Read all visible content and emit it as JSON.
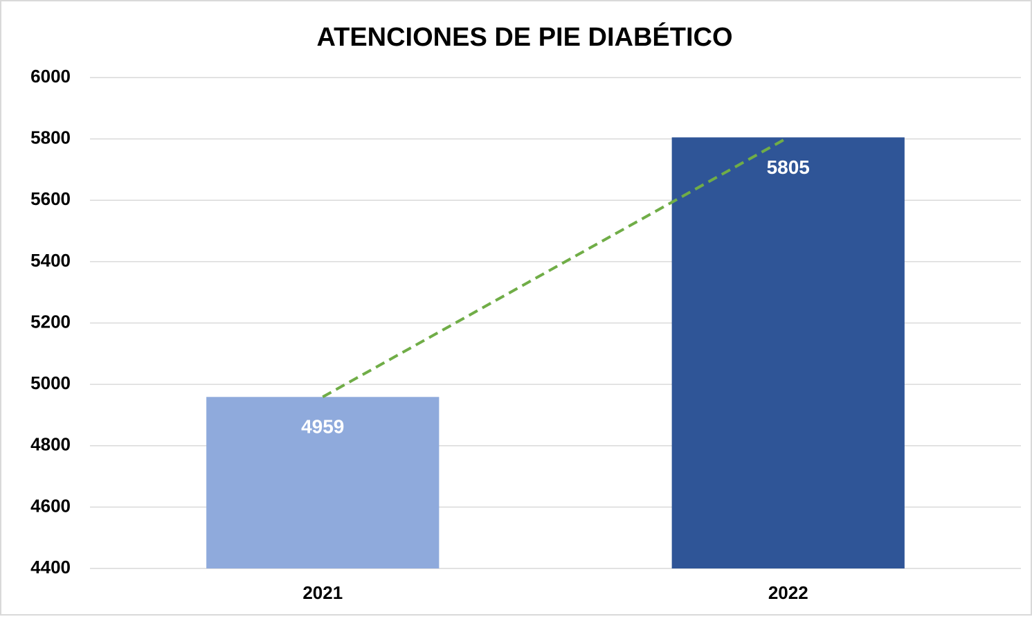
{
  "chart_data": {
    "type": "bar",
    "title": "ATENCIONES DE PIE DIABÉTICO",
    "categories": [
      "2021",
      "2022"
    ],
    "values": [
      4959,
      5805
    ],
    "colors": [
      "#8faadc",
      "#2f5597"
    ],
    "ylim": [
      4400,
      6000
    ],
    "yticks": [
      4400,
      4600,
      4800,
      5000,
      5200,
      5400,
      5600,
      5800,
      6000
    ],
    "grid": true,
    "data_labels": true,
    "trendline": true,
    "trendline_color": "#70ad47"
  }
}
